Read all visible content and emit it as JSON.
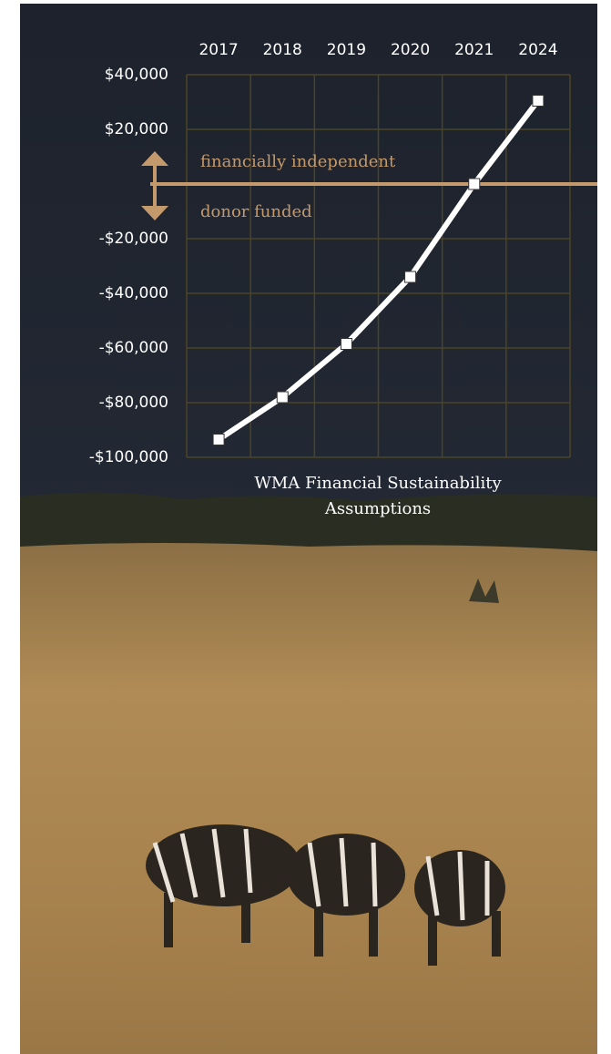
{
  "chart_data": {
    "type": "line",
    "x_label": "WMA Financial Sustainability Assumptions",
    "categories": [
      "2017",
      "2018",
      "2019",
      "2020",
      "2021",
      "2024"
    ],
    "values": [
      -93500,
      -78000,
      -58500,
      -34000,
      0,
      30500
    ],
    "color": "#ffffff",
    "ylim": [
      -100000,
      40000
    ],
    "yticks": [
      {
        "value": 40000,
        "label": "$40,000"
      },
      {
        "value": 20000,
        "label": "$20,000"
      },
      {
        "value": -20000,
        "label": "-$20,000"
      },
      {
        "value": -40000,
        "label": "-$40,000"
      },
      {
        "value": -60000,
        "label": "-$60,000"
      },
      {
        "value": -80000,
        "label": "-$80,000"
      },
      {
        "value": -100000,
        "label": "-$100,000"
      }
    ],
    "grid": true,
    "threshold": {
      "value": 0,
      "above_label": "financially independent",
      "below_label": "donor funded",
      "color": "#c49a6c"
    }
  }
}
